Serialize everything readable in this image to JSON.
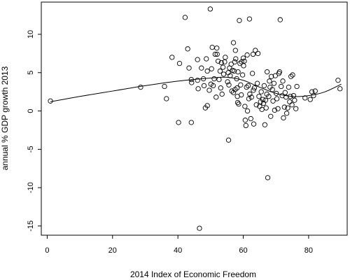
{
  "chart_data": {
    "type": "scatter",
    "xlabel": "2014 Index of Economic Freedom",
    "ylabel": "annual % GDP growth 2013",
    "xlim": [
      -1.8,
      91.8
    ],
    "ylim": [
      -16.2,
      14.2
    ],
    "xticks": [
      0,
      20,
      40,
      60,
      80
    ],
    "yticks": [
      -15,
      -10,
      -5,
      0,
      5,
      10
    ],
    "grid": false,
    "points": [
      {
        "x": 1.0,
        "y": 1.3
      },
      {
        "x": 28.6,
        "y": 3.1
      },
      {
        "x": 35.9,
        "y": 3.2
      },
      {
        "x": 36.5,
        "y": 1.6
      },
      {
        "x": 38.2,
        "y": 7.0
      },
      {
        "x": 40.2,
        "y": -1.5
      },
      {
        "x": 40.5,
        "y": 6.2
      },
      {
        "x": 42.2,
        "y": 12.2
      },
      {
        "x": 43.0,
        "y": 8.1
      },
      {
        "x": 43.4,
        "y": 5.6
      },
      {
        "x": 44.1,
        "y": -1.5
      },
      {
        "x": 44.2,
        "y": 3.7
      },
      {
        "x": 44.1,
        "y": 4.1
      },
      {
        "x": 46.0,
        "y": 6.7
      },
      {
        "x": 46.2,
        "y": 2.9
      },
      {
        "x": 46.0,
        "y": 4.0
      },
      {
        "x": 46.6,
        "y": -15.3
      },
      {
        "x": 47.2,
        "y": 5.6
      },
      {
        "x": 47.8,
        "y": 4.2
      },
      {
        "x": 48.0,
        "y": 3.3
      },
      {
        "x": 48.4,
        "y": 0.4
      },
      {
        "x": 48.7,
        "y": 6.8
      },
      {
        "x": 49.0,
        "y": 0.7
      },
      {
        "x": 49.0,
        "y": 5.2
      },
      {
        "x": 49.6,
        "y": 2.7
      },
      {
        "x": 49.9,
        "y": 13.3
      },
      {
        "x": 50.1,
        "y": 3.5
      },
      {
        "x": 50.3,
        "y": 5.5
      },
      {
        "x": 50.5,
        "y": 8.3
      },
      {
        "x": 50.8,
        "y": 3.3
      },
      {
        "x": 51.1,
        "y": 4.2
      },
      {
        "x": 51.4,
        "y": 7.4
      },
      {
        "x": 51.7,
        "y": 1.8
      },
      {
        "x": 51.9,
        "y": 8.2
      },
      {
        "x": 52.0,
        "y": 7.4
      },
      {
        "x": 52.3,
        "y": 6.5
      },
      {
        "x": 52.6,
        "y": 4.1
      },
      {
        "x": 52.9,
        "y": 5.2
      },
      {
        "x": 53.1,
        "y": 3.0
      },
      {
        "x": 53.3,
        "y": 6.3
      },
      {
        "x": 53.5,
        "y": 2.2
      },
      {
        "x": 53.8,
        "y": 5.7
      },
      {
        "x": 54.0,
        "y": 4.8
      },
      {
        "x": 54.3,
        "y": 6.4
      },
      {
        "x": 54.5,
        "y": 7.0
      },
      {
        "x": 55.2,
        "y": 3.8
      },
      {
        "x": 55.4,
        "y": 5.0
      },
      {
        "x": 55.5,
        "y": -3.8
      },
      {
        "x": 55.6,
        "y": 3.4
      },
      {
        "x": 55.8,
        "y": 5.6
      },
      {
        "x": 56.0,
        "y": 4.6
      },
      {
        "x": 56.3,
        "y": 6.1
      },
      {
        "x": 56.5,
        "y": 2.6
      },
      {
        "x": 56.7,
        "y": 5.3
      },
      {
        "x": 57.0,
        "y": 2.4
      },
      {
        "x": 57.0,
        "y": 8.9
      },
      {
        "x": 57.2,
        "y": 5.2
      },
      {
        "x": 57.4,
        "y": 6.4
      },
      {
        "x": 57.5,
        "y": 2.8
      },
      {
        "x": 57.6,
        "y": 7.9
      },
      {
        "x": 57.7,
        "y": 6.8
      },
      {
        "x": 58.0,
        "y": 4.2
      },
      {
        "x": 58.1,
        "y": 3.0
      },
      {
        "x": 58.2,
        "y": 1.9
      },
      {
        "x": 58.3,
        "y": 1.1
      },
      {
        "x": 58.4,
        "y": 5.1
      },
      {
        "x": 58.6,
        "y": 0.9
      },
      {
        "x": 58.8,
        "y": 11.8
      },
      {
        "x": 59.0,
        "y": 6.2
      },
      {
        "x": 59.2,
        "y": 3.4
      },
      {
        "x": 59.4,
        "y": 2.1
      },
      {
        "x": 59.5,
        "y": 6.4
      },
      {
        "x": 59.8,
        "y": 4.7
      },
      {
        "x": 60.0,
        "y": 6.9
      },
      {
        "x": 60.1,
        "y": 5.9
      },
      {
        "x": 60.3,
        "y": 6.5
      },
      {
        "x": 60.5,
        "y": 0.6
      },
      {
        "x": 60.6,
        "y": -1.2
      },
      {
        "x": 60.8,
        "y": -1.9
      },
      {
        "x": 61.0,
        "y": 3.1
      },
      {
        "x": 61.2,
        "y": 7.3
      },
      {
        "x": 61.3,
        "y": 0.0
      },
      {
        "x": 61.5,
        "y": 3.3
      },
      {
        "x": 61.7,
        "y": 1.6
      },
      {
        "x": 61.9,
        "y": 12.0
      },
      {
        "x": 62.0,
        "y": 2.2
      },
      {
        "x": 62.3,
        "y": -1.0
      },
      {
        "x": 62.5,
        "y": 1.8
      },
      {
        "x": 62.8,
        "y": 4.9
      },
      {
        "x": 63.0,
        "y": 7.4
      },
      {
        "x": 63.1,
        "y": 2.7
      },
      {
        "x": 63.2,
        "y": -1.7
      },
      {
        "x": 63.4,
        "y": 3.0
      },
      {
        "x": 63.7,
        "y": 7.9
      },
      {
        "x": 64.0,
        "y": 0.8
      },
      {
        "x": 64.3,
        "y": 3.6
      },
      {
        "x": 64.5,
        "y": 7.5
      },
      {
        "x": 64.8,
        "y": 1.9
      },
      {
        "x": 65.0,
        "y": 0.6
      },
      {
        "x": 65.3,
        "y": 1.2
      },
      {
        "x": 65.5,
        "y": 2.5
      },
      {
        "x": 65.7,
        "y": 0.2
      },
      {
        "x": 66.0,
        "y": 1.5
      },
      {
        "x": 66.2,
        "y": 1.0
      },
      {
        "x": 66.4,
        "y": 3.3
      },
      {
        "x": 66.6,
        "y": -1.8
      },
      {
        "x": 66.8,
        "y": 1.4
      },
      {
        "x": 67.0,
        "y": 0.4
      },
      {
        "x": 67.2,
        "y": 2.2
      },
      {
        "x": 67.3,
        "y": 5.1
      },
      {
        "x": 67.5,
        "y": -8.7
      },
      {
        "x": 67.8,
        "y": 1.9
      },
      {
        "x": 68.0,
        "y": 3.9
      },
      {
        "x": 68.2,
        "y": 3.1
      },
      {
        "x": 68.4,
        "y": -0.7
      },
      {
        "x": 68.6,
        "y": 4.5
      },
      {
        "x": 68.9,
        "y": 2.8
      },
      {
        "x": 69.1,
        "y": 1.3
      },
      {
        "x": 69.4,
        "y": 3.6
      },
      {
        "x": 69.6,
        "y": 0.1
      },
      {
        "x": 69.8,
        "y": 4.6
      },
      {
        "x": 70.1,
        "y": 2.3
      },
      {
        "x": 70.3,
        "y": 1.6
      },
      {
        "x": 70.6,
        "y": 0.3
      },
      {
        "x": 70.9,
        "y": 4.9
      },
      {
        "x": 71.1,
        "y": 5.1
      },
      {
        "x": 71.3,
        "y": 11.9
      },
      {
        "x": 71.6,
        "y": 3.2
      },
      {
        "x": 71.9,
        "y": 2.0
      },
      {
        "x": 72.1,
        "y": 3.9
      },
      {
        "x": 72.3,
        "y": -0.9
      },
      {
        "x": 72.6,
        "y": 0.5
      },
      {
        "x": 72.8,
        "y": 2.4
      },
      {
        "x": 73.1,
        "y": 1.8
      },
      {
        "x": 73.3,
        "y": -0.3
      },
      {
        "x": 73.6,
        "y": 0.4
      },
      {
        "x": 73.9,
        "y": 3.1
      },
      {
        "x": 74.2,
        "y": 1.2
      },
      {
        "x": 74.4,
        "y": 1.9
      },
      {
        "x": 74.6,
        "y": 4.5
      },
      {
        "x": 74.9,
        "y": 0.8
      },
      {
        "x": 75.1,
        "y": 4.7
      },
      {
        "x": 75.4,
        "y": 2.0
      },
      {
        "x": 75.7,
        "y": 1.4
      },
      {
        "x": 76.1,
        "y": 0.3
      },
      {
        "x": 76.4,
        "y": 3.2
      },
      {
        "x": 78.9,
        "y": 1.7
      },
      {
        "x": 80.5,
        "y": 1.5
      },
      {
        "x": 81.0,
        "y": 2.5
      },
      {
        "x": 81.5,
        "y": 2.0
      },
      {
        "x": 82.0,
        "y": 2.6
      },
      {
        "x": 89.0,
        "y": 4.0
      },
      {
        "x": 89.6,
        "y": 2.9
      }
    ],
    "smooth_curve": {
      "x": [
        1,
        10,
        20,
        30,
        40,
        50,
        55,
        60,
        65,
        70,
        75,
        80,
        85,
        90
      ],
      "y": [
        1.2,
        1.9,
        2.6,
        3.3,
        3.9,
        4.3,
        4.4,
        4.0,
        3.1,
        2.3,
        1.9,
        2.0,
        2.5,
        3.5
      ]
    }
  }
}
